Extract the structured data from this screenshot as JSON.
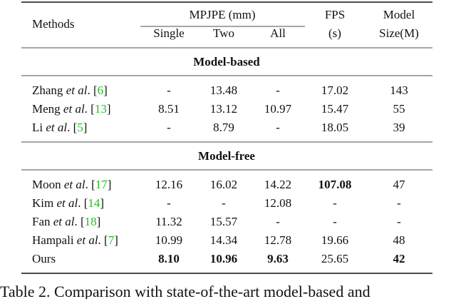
{
  "header": {
    "methods": "Methods",
    "mpjpe": "MPJPE (mm)",
    "single": "Single",
    "two": "Two",
    "all": "All",
    "fps": [
      "FPS",
      "(s)"
    ],
    "size": [
      "Model",
      "Size(M)"
    ]
  },
  "sections": [
    {
      "title": "Model-based",
      "rows": [
        {
          "method": [
            {
              "t": "Zhang "
            },
            {
              "t": "et al",
              "i": true
            },
            {
              "t": ". ["
            },
            {
              "t": "6",
              "cite": true
            },
            {
              "t": "]"
            }
          ],
          "cells": [
            {
              "v": "-"
            },
            {
              "v": "13.48"
            },
            {
              "v": "-"
            },
            {
              "v": "17.02"
            },
            {
              "v": "143"
            }
          ]
        },
        {
          "method": [
            {
              "t": "Meng "
            },
            {
              "t": "et al",
              "i": true
            },
            {
              "t": ". ["
            },
            {
              "t": "13",
              "cite": true
            },
            {
              "t": "]"
            }
          ],
          "cells": [
            {
              "v": "8.51"
            },
            {
              "v": "13.12"
            },
            {
              "v": "10.97"
            },
            {
              "v": "15.47"
            },
            {
              "v": "55"
            }
          ]
        },
        {
          "method": [
            {
              "t": "Li "
            },
            {
              "t": "et al",
              "i": true
            },
            {
              "t": ". ["
            },
            {
              "t": "5",
              "cite": true
            },
            {
              "t": "]"
            }
          ],
          "cells": [
            {
              "v": "-"
            },
            {
              "v": "8.79"
            },
            {
              "v": "-"
            },
            {
              "v": "18.05"
            },
            {
              "v": "39"
            }
          ]
        }
      ]
    },
    {
      "title": "Model-free",
      "rows": [
        {
          "method": [
            {
              "t": "Moon "
            },
            {
              "t": "et al",
              "i": true
            },
            {
              "t": ". ["
            },
            {
              "t": "17",
              "cite": true
            },
            {
              "t": "]"
            }
          ],
          "cells": [
            {
              "v": "12.16"
            },
            {
              "v": "16.02"
            },
            {
              "v": "14.22"
            },
            {
              "v": "107.08",
              "b": true
            },
            {
              "v": "47"
            }
          ]
        },
        {
          "method": [
            {
              "t": "Kim "
            },
            {
              "t": "et al",
              "i": true
            },
            {
              "t": ". ["
            },
            {
              "t": "14",
              "cite": true
            },
            {
              "t": "]"
            }
          ],
          "cells": [
            {
              "v": "-"
            },
            {
              "v": "-"
            },
            {
              "v": "12.08"
            },
            {
              "v": "-"
            },
            {
              "v": "-"
            }
          ]
        },
        {
          "method": [
            {
              "t": "Fan "
            },
            {
              "t": "et al",
              "i": true
            },
            {
              "t": ". ["
            },
            {
              "t": "18",
              "cite": true
            },
            {
              "t": "]"
            }
          ],
          "cells": [
            {
              "v": "11.32"
            },
            {
              "v": "15.57"
            },
            {
              "v": "-"
            },
            {
              "v": "-"
            },
            {
              "v": "-"
            }
          ]
        },
        {
          "method": [
            {
              "t": "Hampali "
            },
            {
              "t": "et al",
              "i": true
            },
            {
              "t": ". ["
            },
            {
              "t": "7",
              "cite": true
            },
            {
              "t": "]"
            }
          ],
          "cells": [
            {
              "v": "10.99"
            },
            {
              "v": "14.34"
            },
            {
              "v": "12.78"
            },
            {
              "v": "19.66"
            },
            {
              "v": "48"
            }
          ]
        },
        {
          "method": [
            {
              "t": "Ours"
            }
          ],
          "cells": [
            {
              "v": "8.10",
              "b": true
            },
            {
              "v": "10.96",
              "b": true
            },
            {
              "v": "9.63",
              "b": true
            },
            {
              "v": "25.65"
            },
            {
              "v": "42",
              "b": true
            }
          ]
        }
      ]
    }
  ],
  "caption": "Table 2.   Comparison with state-of-the-art model-based and"
}
